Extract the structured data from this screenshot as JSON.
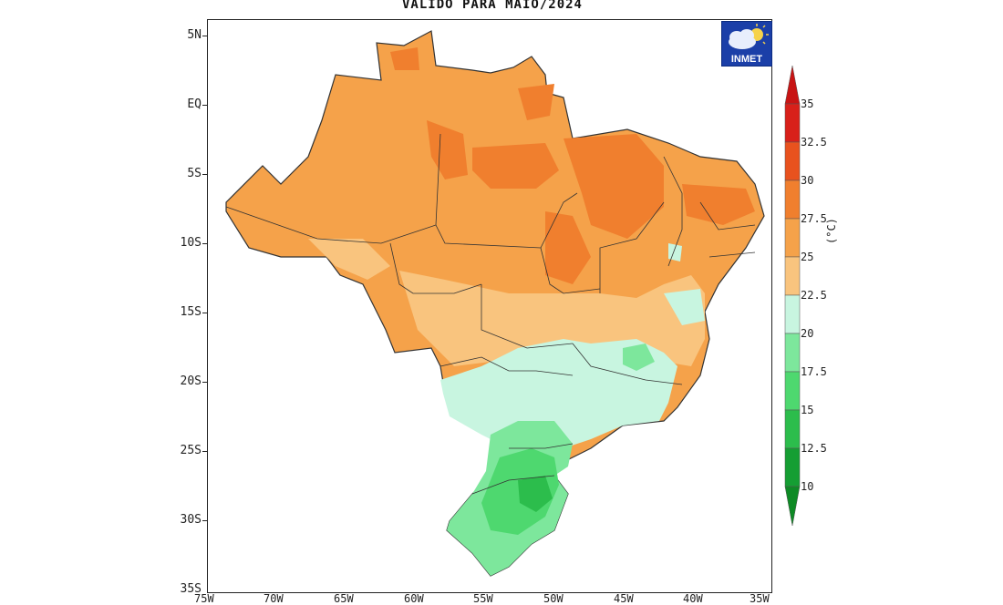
{
  "title": "VALIDO PARA MAIO/2024",
  "logo_text": "INMET",
  "unit": "(°C)",
  "lat_labels": [
    "5N",
    "EQ",
    "5S",
    "10S",
    "15S",
    "20S",
    "25S",
    "30S",
    "35S"
  ],
  "lon_labels": [
    "75W",
    "70W",
    "65W",
    "60W",
    "55W",
    "50W",
    "45W",
    "40W",
    "35W"
  ],
  "legend": {
    "labels": [
      "35",
      "32.5",
      "30",
      "27.5",
      "25",
      "22.5",
      "20",
      "17.5",
      "15",
      "12.5",
      "10"
    ],
    "colors": [
      "#d8201a",
      "#e8521e",
      "#f07f2e",
      "#f5a24a",
      "#f9c47e",
      "#c8f5e0",
      "#7de79c",
      "#4ed86f",
      "#2cbd4c",
      "#159e33"
    ]
  },
  "regions": {
    "north": "warm",
    "northeast": "warm",
    "centerwest": "warm",
    "southeast": "mild",
    "south": "cool"
  }
}
